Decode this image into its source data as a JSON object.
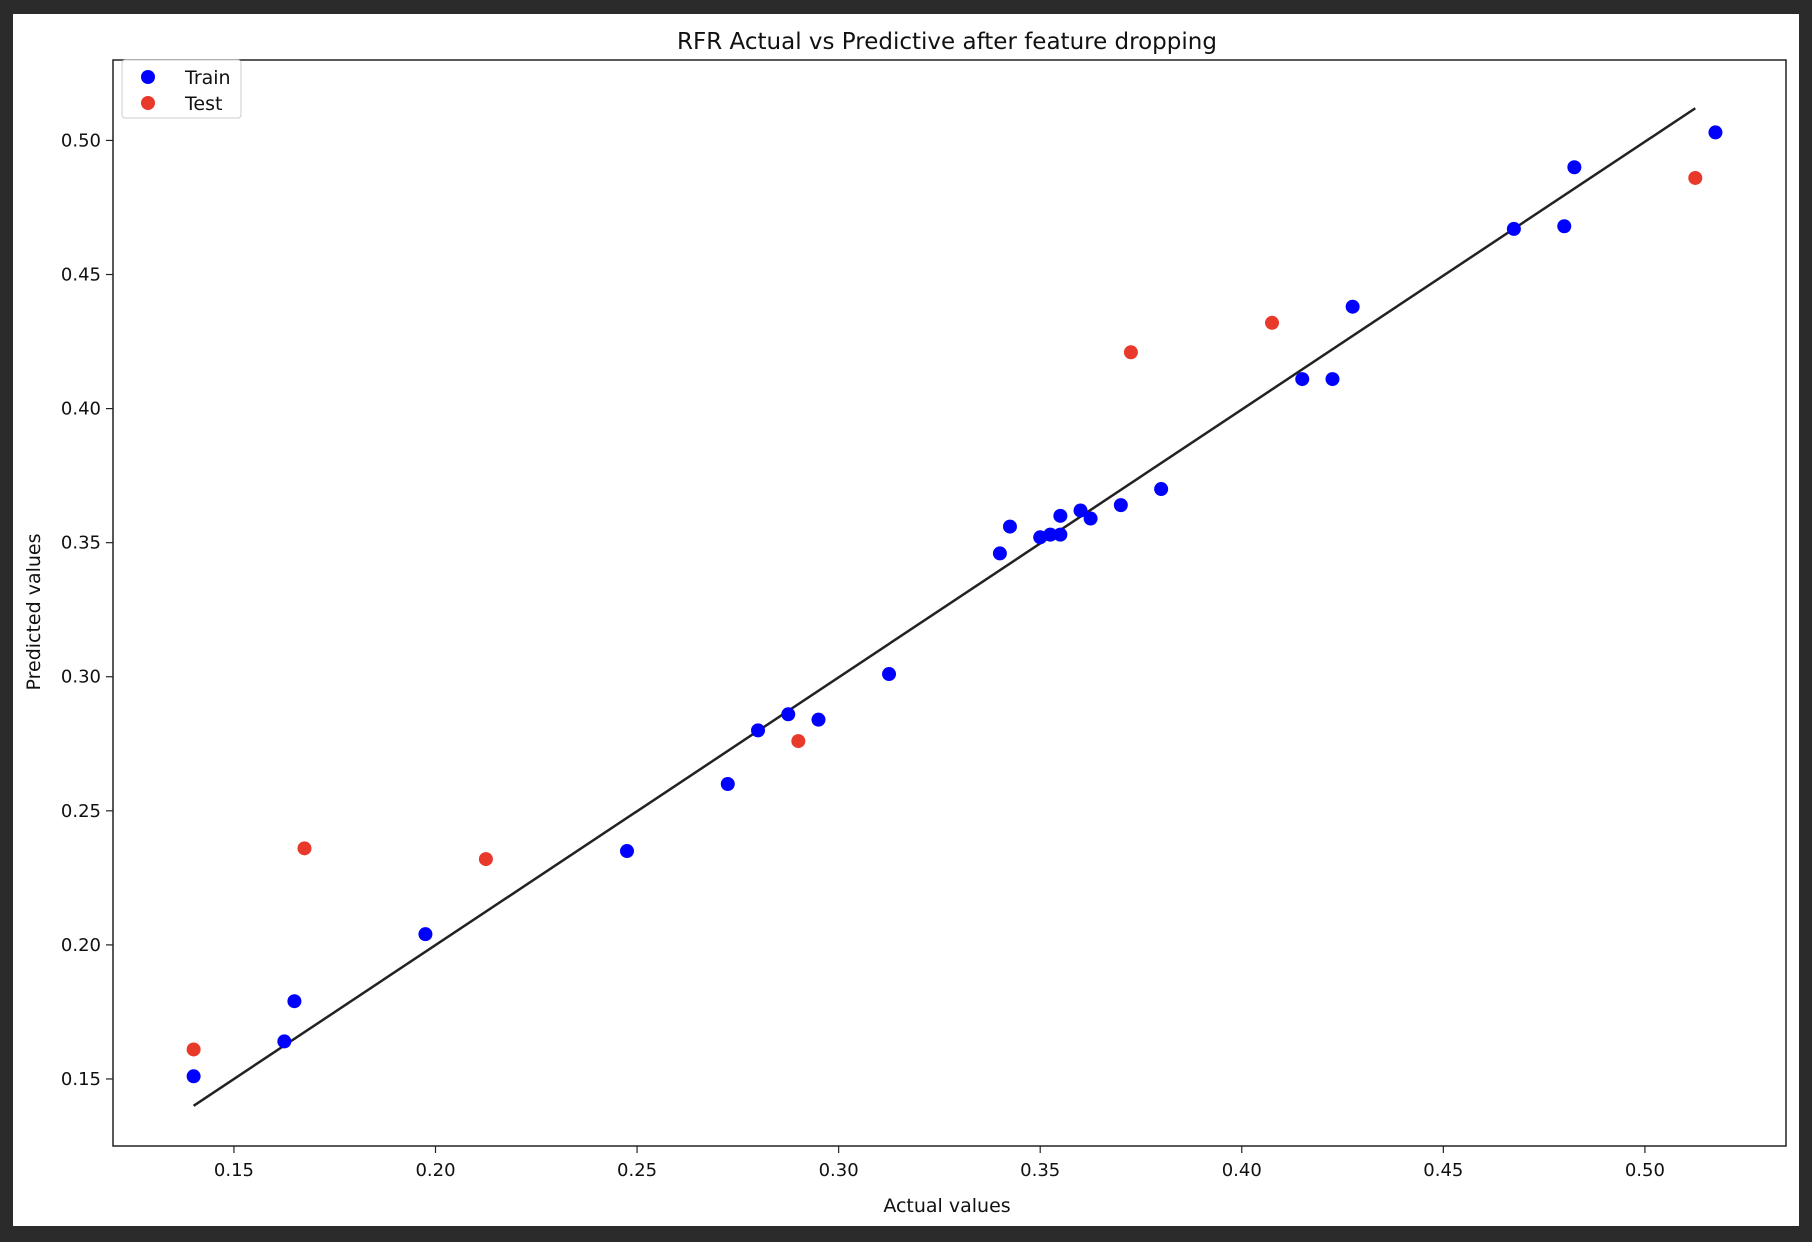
{
  "chart_data": {
    "type": "scatter",
    "title": "RFR Actual vs Predictive after feature dropping",
    "xlabel": "Actual values",
    "ylabel": "Predicted values",
    "xlim": [
      0.12,
      0.535
    ],
    "ylim": [
      0.125,
      0.53
    ],
    "xticks": [
      0.15,
      0.2,
      0.25,
      0.3,
      0.35,
      0.4,
      0.45,
      0.5
    ],
    "yticks": [
      0.15,
      0.2,
      0.25,
      0.3,
      0.35,
      0.4,
      0.45,
      0.5
    ],
    "x_tick_labels": [
      "0.15",
      "0.20",
      "0.25",
      "0.30",
      "0.35",
      "0.40",
      "0.45",
      "0.50"
    ],
    "y_tick_labels": [
      "0.15",
      "0.20",
      "0.25",
      "0.30",
      "0.35",
      "0.40",
      "0.45",
      "0.50"
    ],
    "legend_position": "top-left",
    "grid": false,
    "series": [
      {
        "name": "Train",
        "color": "#0000ff",
        "points": [
          [
            0.14,
            0.151
          ],
          [
            0.1625,
            0.164
          ],
          [
            0.165,
            0.179
          ],
          [
            0.1975,
            0.204
          ],
          [
            0.2475,
            0.235
          ],
          [
            0.2725,
            0.26
          ],
          [
            0.28,
            0.28
          ],
          [
            0.2875,
            0.286
          ],
          [
            0.295,
            0.284
          ],
          [
            0.3125,
            0.301
          ],
          [
            0.34,
            0.346
          ],
          [
            0.3425,
            0.356
          ],
          [
            0.35,
            0.352
          ],
          [
            0.3525,
            0.353
          ],
          [
            0.355,
            0.353
          ],
          [
            0.355,
            0.36
          ],
          [
            0.36,
            0.362
          ],
          [
            0.3625,
            0.359
          ],
          [
            0.37,
            0.364
          ],
          [
            0.38,
            0.37
          ],
          [
            0.415,
            0.411
          ],
          [
            0.4225,
            0.411
          ],
          [
            0.4275,
            0.438
          ],
          [
            0.4675,
            0.467
          ],
          [
            0.48,
            0.468
          ],
          [
            0.4825,
            0.49
          ],
          [
            0.5175,
            0.503
          ]
        ]
      },
      {
        "name": "Test",
        "color": "#e8392b",
        "points": [
          [
            0.14,
            0.161
          ],
          [
            0.1675,
            0.236
          ],
          [
            0.2125,
            0.232
          ],
          [
            0.29,
            0.276
          ],
          [
            0.3725,
            0.421
          ],
          [
            0.4075,
            0.432
          ],
          [
            0.5125,
            0.486
          ]
        ]
      }
    ],
    "fit_line": {
      "color": "#222222",
      "points": [
        [
          0.14,
          0.14
        ],
        [
          0.5125,
          0.512
        ]
      ]
    }
  }
}
